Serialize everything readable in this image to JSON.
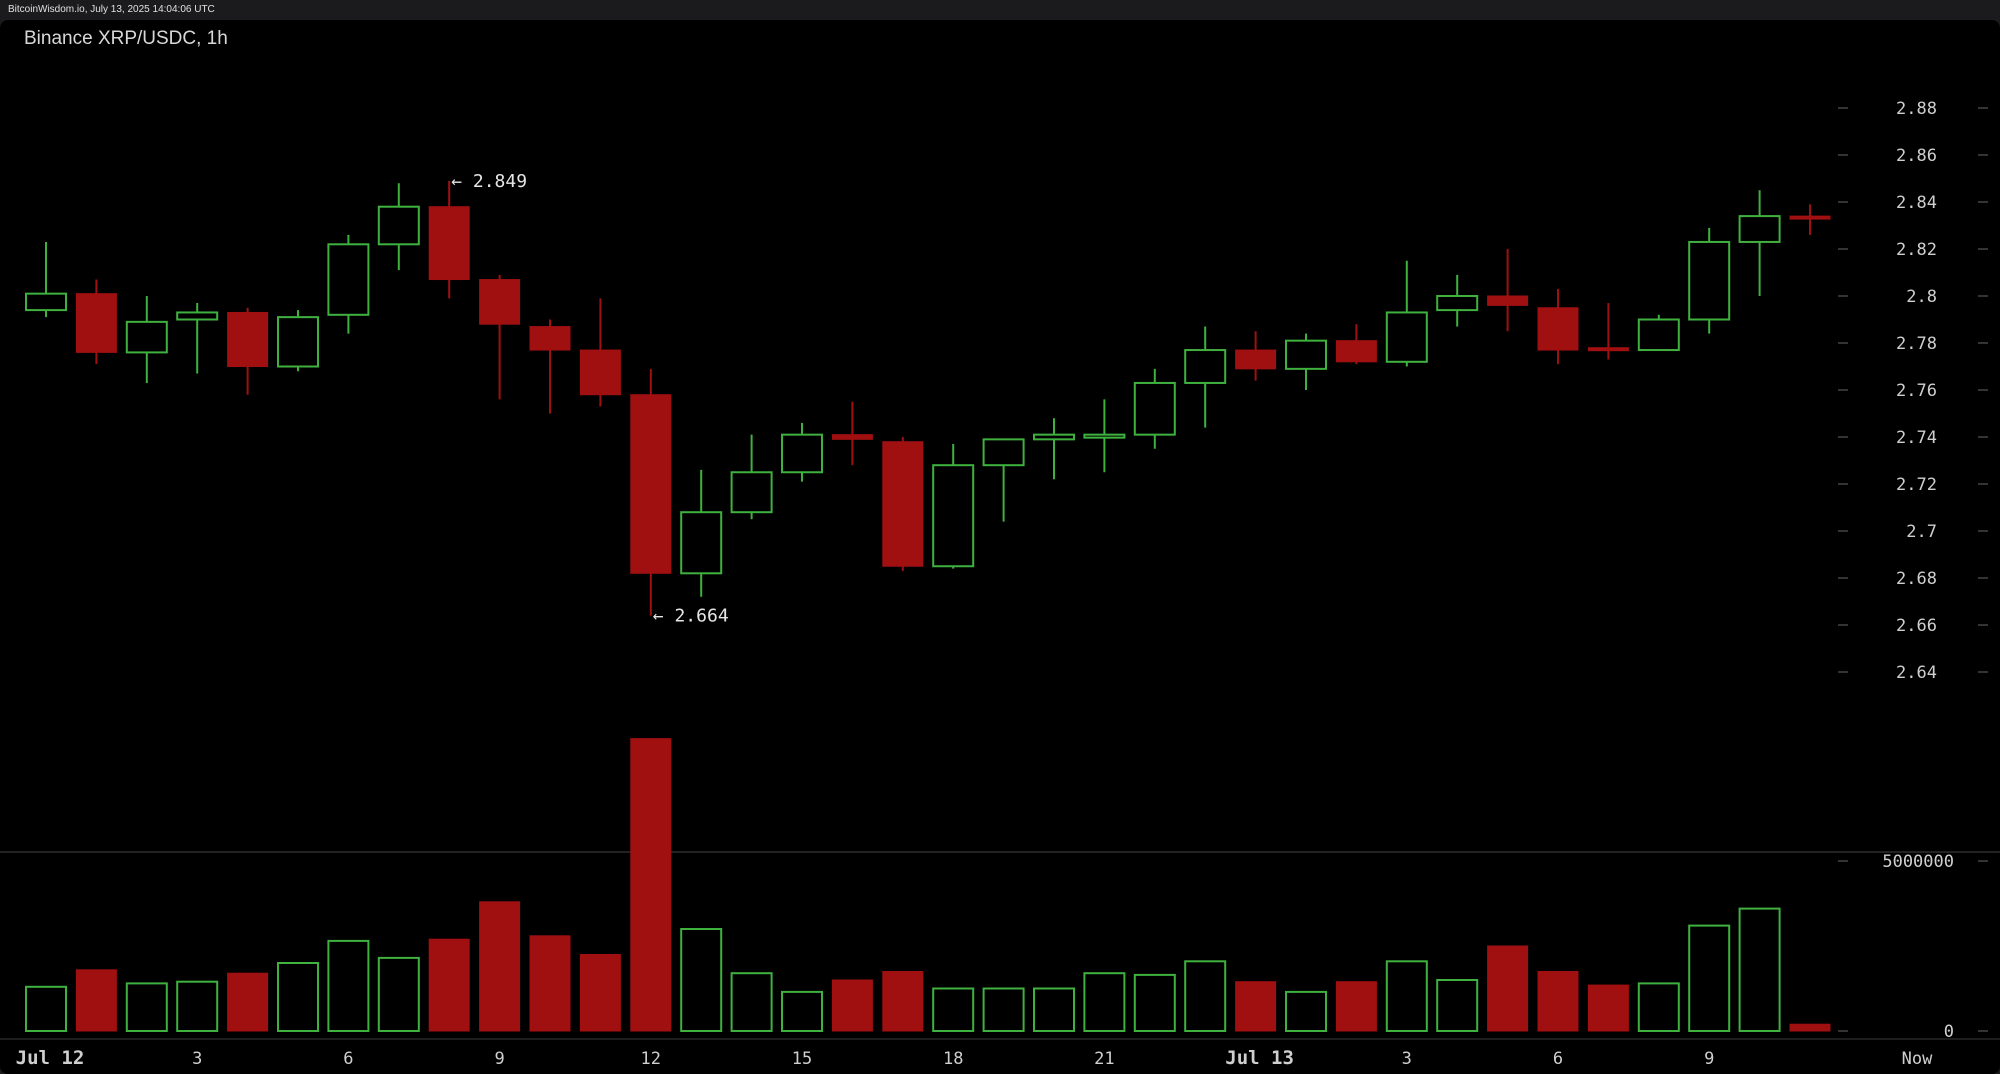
{
  "header": {
    "source": "BitcoinWisdom.io, July 13, 2025 14:04:06 UTC"
  },
  "chart_data": {
    "type": "candlestick",
    "title": "Binance XRP/USDC, 1h",
    "price_axis": {
      "range": [
        2.63,
        2.89
      ],
      "ticks": [
        "2.88",
        "2.86",
        "2.84",
        "2.82",
        "2.8",
        "2.78",
        "2.76",
        "2.74",
        "2.72",
        "2.7",
        "2.68",
        "2.66",
        "2.64"
      ]
    },
    "volume_axis": {
      "range": [
        0,
        5500000
      ],
      "ticks": [
        "5000000",
        "0"
      ]
    },
    "x_ticks": [
      {
        "label": "Jul 12",
        "index": 0,
        "bold": true
      },
      {
        "label": "3",
        "index": 3
      },
      {
        "label": "6",
        "index": 6
      },
      {
        "label": "9",
        "index": 9
      },
      {
        "label": "12",
        "index": 12
      },
      {
        "label": "15",
        "index": 15
      },
      {
        "label": "18",
        "index": 18
      },
      {
        "label": "21",
        "index": 21
      },
      {
        "label": "Jul 13",
        "index": 24,
        "bold": true
      },
      {
        "label": "3",
        "index": 27
      },
      {
        "label": "6",
        "index": 30
      },
      {
        "label": "9",
        "index": 33
      },
      {
        "label": "Now",
        "index": 36
      }
    ],
    "annotations": [
      {
        "text": "← 2.849",
        "index": 8,
        "price": 2.849
      },
      {
        "text": "← 2.664",
        "index": 12,
        "price": 2.664
      }
    ],
    "candles": [
      {
        "o": 2.794,
        "h": 2.823,
        "l": 2.791,
        "c": 2.801,
        "v": 1300000
      },
      {
        "o": 2.801,
        "h": 2.807,
        "l": 2.771,
        "c": 2.776,
        "v": 1800000
      },
      {
        "o": 2.776,
        "h": 2.8,
        "l": 2.763,
        "c": 2.789,
        "v": 1400000
      },
      {
        "o": 2.79,
        "h": 2.797,
        "l": 2.767,
        "c": 2.793,
        "v": 1450000
      },
      {
        "o": 2.793,
        "h": 2.795,
        "l": 2.758,
        "c": 2.77,
        "v": 1700000
      },
      {
        "o": 2.77,
        "h": 2.794,
        "l": 2.768,
        "c": 2.791,
        "v": 2000000
      },
      {
        "o": 2.792,
        "h": 2.826,
        "l": 2.784,
        "c": 2.822,
        "v": 2650000
      },
      {
        "o": 2.822,
        "h": 2.848,
        "l": 2.811,
        "c": 2.838,
        "v": 2150000
      },
      {
        "o": 2.838,
        "h": 2.849,
        "l": 2.799,
        "c": 2.807,
        "v": 2700000
      },
      {
        "o": 2.807,
        "h": 2.809,
        "l": 2.756,
        "c": 2.788,
        "v": 3800000
      },
      {
        "o": 2.787,
        "h": 2.79,
        "l": 2.75,
        "c": 2.777,
        "v": 2800000
      },
      {
        "o": 2.777,
        "h": 2.799,
        "l": 2.753,
        "c": 2.758,
        "v": 2250000
      },
      {
        "o": 2.758,
        "h": 2.769,
        "l": 2.664,
        "c": 2.682,
        "v": 8600000
      },
      {
        "o": 2.682,
        "h": 2.726,
        "l": 2.672,
        "c": 2.708,
        "v": 3000000
      },
      {
        "o": 2.708,
        "h": 2.741,
        "l": 2.705,
        "c": 2.725,
        "v": 1700000
      },
      {
        "o": 2.725,
        "h": 2.746,
        "l": 2.721,
        "c": 2.741,
        "v": 1150000
      },
      {
        "o": 2.741,
        "h": 2.755,
        "l": 2.728,
        "c": 2.739,
        "v": 1500000
      },
      {
        "o": 2.738,
        "h": 2.74,
        "l": 2.683,
        "c": 2.685,
        "v": 1750000
      },
      {
        "o": 2.685,
        "h": 2.737,
        "l": 2.684,
        "c": 2.728,
        "v": 1250000
      },
      {
        "o": 2.728,
        "h": 2.739,
        "l": 2.704,
        "c": 2.739,
        "v": 1250000
      },
      {
        "o": 2.739,
        "h": 2.748,
        "l": 2.722,
        "c": 2.741,
        "v": 1250000
      },
      {
        "o": 2.741,
        "h": 2.756,
        "l": 2.725,
        "c": 2.741,
        "v": 1700000
      },
      {
        "o": 2.741,
        "h": 2.769,
        "l": 2.735,
        "c": 2.763,
        "v": 1650000
      },
      {
        "o": 2.763,
        "h": 2.787,
        "l": 2.744,
        "c": 2.777,
        "v": 2050000
      },
      {
        "o": 2.777,
        "h": 2.785,
        "l": 2.764,
        "c": 2.769,
        "v": 1450000
      },
      {
        "o": 2.769,
        "h": 2.784,
        "l": 2.76,
        "c": 2.781,
        "v": 1150000
      },
      {
        "o": 2.781,
        "h": 2.788,
        "l": 2.771,
        "c": 2.772,
        "v": 1450000
      },
      {
        "o": 2.772,
        "h": 2.815,
        "l": 2.77,
        "c": 2.793,
        "v": 2050000
      },
      {
        "o": 2.794,
        "h": 2.809,
        "l": 2.787,
        "c": 2.8,
        "v": 1500000
      },
      {
        "o": 2.8,
        "h": 2.82,
        "l": 2.785,
        "c": 2.796,
        "v": 2500000
      },
      {
        "o": 2.795,
        "h": 2.803,
        "l": 2.771,
        "c": 2.777,
        "v": 1750000
      },
      {
        "o": 2.778,
        "h": 2.797,
        "l": 2.773,
        "c": 2.777,
        "v": 1350000
      },
      {
        "o": 2.777,
        "h": 2.792,
        "l": 2.777,
        "c": 2.79,
        "v": 1400000
      },
      {
        "o": 2.79,
        "h": 2.829,
        "l": 2.784,
        "c": 2.823,
        "v": 3100000
      },
      {
        "o": 2.823,
        "h": 2.845,
        "l": 2.8,
        "c": 2.834,
        "v": 3600000
      },
      {
        "o": 2.834,
        "h": 2.839,
        "l": 2.826,
        "c": 2.833,
        "v": 200000
      }
    ],
    "colors": {
      "up": "#3fb13f",
      "down": "#a01010",
      "background": "#000000",
      "grid": "#3a3a3a"
    }
  }
}
